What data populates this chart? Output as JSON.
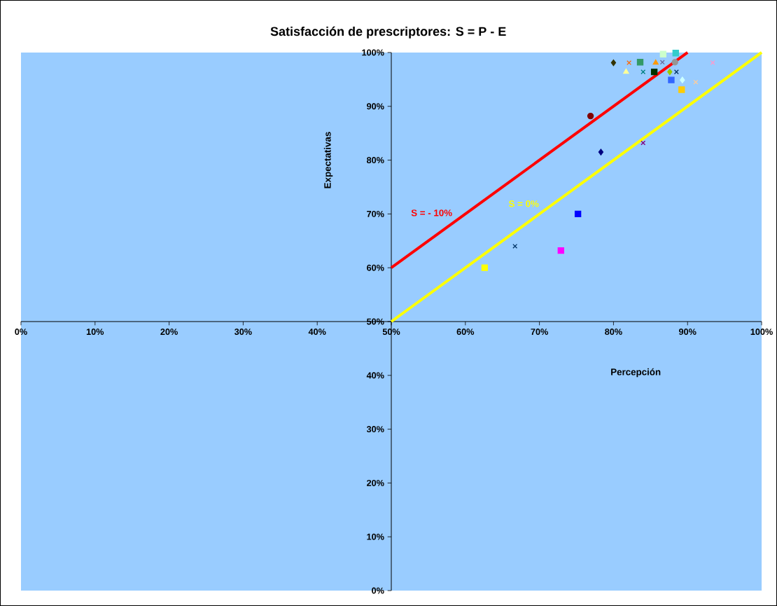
{
  "chart_data": {
    "type": "scatter",
    "title": "Satisfacción de prescriptores: S = P - E",
    "xlabel": "Percepción",
    "ylabel": "Expectativas",
    "xlim": [
      0,
      100
    ],
    "ylim": [
      0,
      100
    ],
    "xticks": [
      {
        "value": 0,
        "label": "0%"
      },
      {
        "value": 10,
        "label": "10%"
      },
      {
        "value": 20,
        "label": "20%"
      },
      {
        "value": 30,
        "label": "30%"
      },
      {
        "value": 40,
        "label": "40%"
      },
      {
        "value": 50,
        "label": "50%"
      },
      {
        "value": 60,
        "label": "60%"
      },
      {
        "value": 70,
        "label": "70%"
      },
      {
        "value": 80,
        "label": "80%"
      },
      {
        "value": 90,
        "label": "90%"
      },
      {
        "value": 100,
        "label": "100%"
      }
    ],
    "yticks": [
      {
        "value": 0,
        "label": "0%"
      },
      {
        "value": 10,
        "label": "10%"
      },
      {
        "value": 20,
        "label": "20%"
      },
      {
        "value": 30,
        "label": "30%"
      },
      {
        "value": 40,
        "label": "40%"
      },
      {
        "value": 50,
        "label": "50%"
      },
      {
        "value": 60,
        "label": "60%"
      },
      {
        "value": 70,
        "label": "70%"
      },
      {
        "value": 80,
        "label": "80%"
      },
      {
        "value": 90,
        "label": "90%"
      },
      {
        "value": 100,
        "label": "100%"
      }
    ],
    "series": [
      {
        "type": "line",
        "name": "S = - 10%",
        "color": "#ff0000",
        "x": [
          50,
          90
        ],
        "values": [
          60,
          100
        ],
        "marker": "none"
      },
      {
        "type": "line",
        "name": "S = 0%",
        "color": "#ffff00",
        "x": [
          50,
          100
        ],
        "values": [
          50,
          100
        ],
        "marker": "none"
      },
      {
        "color": "#333300",
        "marker": "diamond",
        "x": [
          80.0
        ],
        "values": [
          98.1
        ]
      },
      {
        "color": "#ff6600",
        "marker": "cross",
        "x": [
          82.1
        ],
        "values": [
          98.1
        ]
      },
      {
        "color": "#339966",
        "marker": "square",
        "x": [
          83.6
        ],
        "values": [
          98.2
        ]
      },
      {
        "color": "#ff9900",
        "marker": "triangle",
        "x": [
          85.7
        ],
        "values": [
          98.1
        ]
      },
      {
        "color": "#666699",
        "marker": "cross",
        "x": [
          86.6
        ],
        "values": [
          98.2
        ]
      },
      {
        "color": "#969696",
        "marker": "circle",
        "x": [
          88.3
        ],
        "values": [
          98.2
        ]
      },
      {
        "color": "#ccffcc",
        "marker": "square",
        "x": [
          86.7
        ],
        "values": [
          99.7
        ]
      },
      {
        "color": "#33cccc",
        "marker": "square",
        "x": [
          88.4
        ],
        "values": [
          99.9
        ]
      },
      {
        "color": "#ff99cc",
        "marker": "cross",
        "x": [
          93.4
        ],
        "values": [
          98.1
        ]
      },
      {
        "color": "#ffff99",
        "marker": "triangle",
        "x": [
          81.7
        ],
        "values": [
          96.4
        ]
      },
      {
        "color": "#008080",
        "marker": "cross",
        "x": [
          84.0
        ],
        "values": [
          96.4
        ]
      },
      {
        "color": "#003300",
        "marker": "square",
        "x": [
          85.5
        ],
        "values": [
          96.4
        ]
      },
      {
        "color": "#99cc00",
        "marker": "diamond",
        "x": [
          87.6
        ],
        "values": [
          96.4
        ]
      },
      {
        "color": "#003366",
        "marker": "cross",
        "x": [
          88.5
        ],
        "values": [
          96.4
        ]
      },
      {
        "color": "#3366ff",
        "marker": "square",
        "x": [
          87.8
        ],
        "values": [
          94.9
        ]
      },
      {
        "color": "#ccffff",
        "marker": "diamond",
        "x": [
          89.3
        ],
        "values": [
          94.9
        ]
      },
      {
        "color": "#ffcc99",
        "marker": "cross",
        "x": [
          91.1
        ],
        "values": [
          94.5
        ]
      },
      {
        "color": "#ffcc00",
        "marker": "square",
        "x": [
          89.2
        ],
        "values": [
          93.1
        ]
      },
      {
        "color": "#800000",
        "marker": "circle",
        "x": [
          76.9
        ],
        "values": [
          88.2
        ]
      },
      {
        "color": "#000080",
        "marker": "diamond",
        "x": [
          78.3
        ],
        "values": [
          81.5
        ]
      },
      {
        "color": "#800080",
        "marker": "cross",
        "x": [
          84.0
        ],
        "values": [
          83.2
        ]
      },
      {
        "color": "#0000ff",
        "marker": "square",
        "x": [
          75.2
        ],
        "values": [
          70.0
        ]
      },
      {
        "color": "#003366",
        "marker": "cross",
        "x": [
          66.7
        ],
        "values": [
          64.0
        ]
      },
      {
        "color": "#ff00ff",
        "marker": "square",
        "x": [
          72.9
        ],
        "values": [
          63.2
        ]
      },
      {
        "color": "#ffff00",
        "marker": "square",
        "x": [
          62.6
        ],
        "values": [
          60.0
        ]
      }
    ]
  }
}
